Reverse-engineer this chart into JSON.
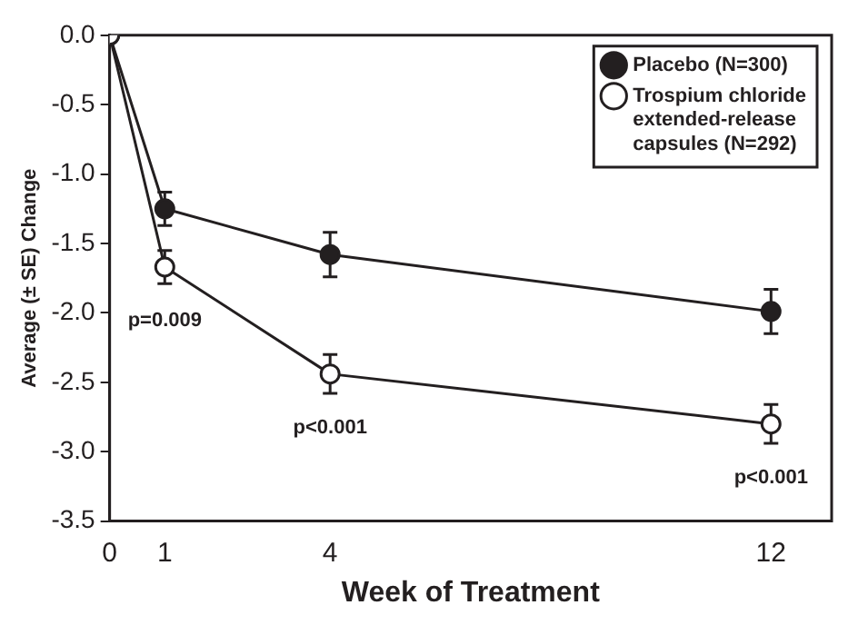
{
  "chart_data": {
    "type": "line",
    "xlabel": "Week of Treatment",
    "ylabel": "Average (± SE) Change",
    "x": [
      0,
      1,
      4,
      12
    ],
    "series": [
      {
        "name": "Placebo (N=300)",
        "color": "#231f20",
        "values": [
          0,
          -1.25,
          -1.58,
          -1.99
        ],
        "errors": [
          null,
          0.12,
          0.16,
          0.16
        ]
      },
      {
        "name": "Trospium chloride extended-release capsules (N=292)",
        "color": "#231f20",
        "values": [
          0,
          -1.67,
          -2.44,
          -2.8
        ],
        "errors": [
          null,
          0.12,
          0.14,
          0.14
        ]
      }
    ],
    "xlim": [
      0,
      13.1
    ],
    "xticks": [
      0,
      1,
      4,
      12
    ],
    "ylim": [
      -3.5,
      0
    ],
    "yticks": [
      {
        "value": -3.5,
        "label": "-3.5"
      },
      {
        "value": -3,
        "label": "-3.0"
      },
      {
        "value": -2.5,
        "label": "-2.5"
      },
      {
        "value": -2,
        "label": "-2.0"
      },
      {
        "value": -1.5,
        "label": "-1.5"
      },
      {
        "value": -1,
        "label": "-1.0"
      },
      {
        "value": -0.5,
        "label": "-0.5"
      },
      {
        "value": 0,
        "label": "0.0"
      }
    ],
    "annotations": [
      {
        "text": "p=0.009",
        "x": 1,
        "y": -1.67
      },
      {
        "text": "p<0.001",
        "x": 4,
        "y": -2.44
      },
      {
        "text": "p<0.001",
        "x": 12,
        "y": -2.8
      }
    ],
    "grid": false,
    "legend": "top right",
    "marker": "circle",
    "line_style": "solid"
  }
}
